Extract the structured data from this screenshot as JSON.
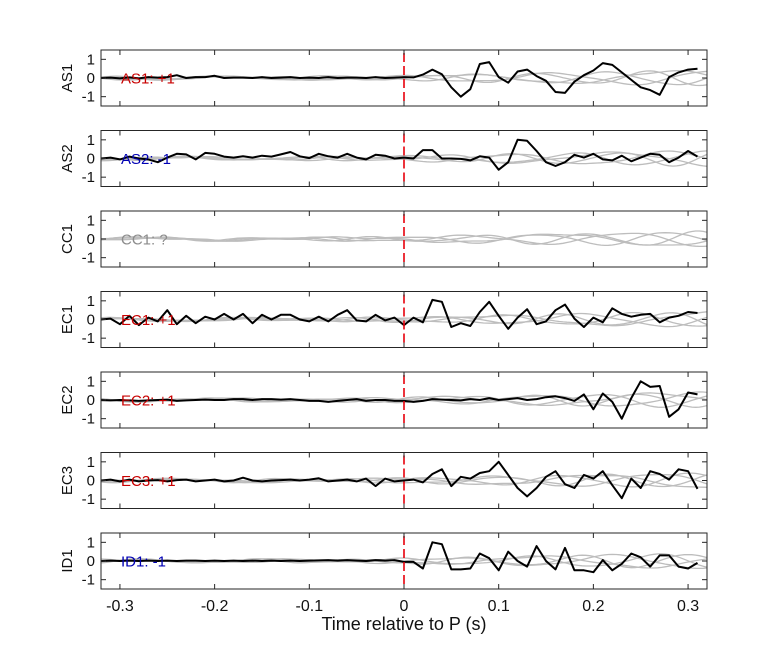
{
  "figure": {
    "xlabel": "Time relative to P (s)"
  },
  "chart_data": {
    "type": "line",
    "xlabel": "Time relative to P (s)",
    "xlim": [
      -0.32,
      0.32
    ],
    "ylim": [
      -1.5,
      1.5
    ],
    "xticks": [
      -0.3,
      -0.2,
      -0.1,
      0,
      0.1,
      0.2,
      0.3
    ],
    "xtick_labels": [
      "-0.3",
      "-0.2",
      "-0.1",
      "0",
      "0.1",
      "0.2",
      "0.3"
    ],
    "yticks": [
      1,
      0,
      -1
    ],
    "ytick_labels": [
      "1",
      "0",
      "-1"
    ],
    "grid": false,
    "marker_time": 0,
    "colors": {
      "main": "#000000",
      "background": "#bdbdbd",
      "marker": "#e8000b",
      "positive": "#c80000",
      "negative": "#0000b4",
      "unknown": "#8c8c8c"
    },
    "panels": [
      {
        "name": "AS1",
        "label": "AS1: +1",
        "label_color": "#c80000",
        "x": [
          -0.32,
          -0.31,
          -0.3,
          -0.29,
          -0.28,
          -0.27,
          -0.26,
          -0.25,
          -0.24,
          -0.23,
          -0.22,
          -0.21,
          -0.2,
          -0.19,
          -0.18,
          -0.17,
          -0.16,
          -0.15,
          -0.14,
          -0.13,
          -0.12,
          -0.11,
          -0.1,
          -0.09,
          -0.08,
          -0.07,
          -0.06,
          -0.05,
          -0.04,
          -0.03,
          -0.02,
          -0.01,
          0,
          0.01,
          0.02,
          0.03,
          0.04,
          0.05,
          0.06,
          0.07,
          0.08,
          0.09,
          0.1,
          0.11,
          0.12,
          0.13,
          0.14,
          0.15,
          0.16,
          0.17,
          0.18,
          0.19,
          0.2,
          0.21,
          0.22,
          0.23,
          0.24,
          0.25,
          0.26,
          0.27,
          0.28,
          0.29,
          0.3,
          0.31
        ],
        "y": [
          0,
          0.02,
          -0.02,
          0.03,
          -0.02,
          0.05,
          0.02,
          0.05,
          0.15,
          0,
          0.05,
          0.05,
          0.12,
          0,
          0.02,
          0.02,
          0,
          0.05,
          0,
          0.02,
          0.05,
          0,
          0.02,
          0,
          0.05,
          0,
          0.02,
          0.02,
          0,
          0.05,
          0,
          0.02,
          0.05,
          0.03,
          0.18,
          0.45,
          0.2,
          -0.5,
          -1,
          -0.6,
          0.75,
          0.85,
          0.05,
          -0.25,
          0.35,
          0.45,
          0.1,
          -0.15,
          -0.75,
          -0.8,
          -0.2,
          0.15,
          0.4,
          0.8,
          0.7,
          0.3,
          -0.1,
          -0.5,
          -0.65,
          -0.9,
          0.05,
          0.3,
          0.45,
          0.5
        ]
      },
      {
        "name": "AS2",
        "label": "AS2: -1",
        "label_color": "#0000b4",
        "x": [
          -0.32,
          -0.31,
          -0.3,
          -0.29,
          -0.28,
          -0.27,
          -0.26,
          -0.25,
          -0.24,
          -0.23,
          -0.22,
          -0.21,
          -0.2,
          -0.19,
          -0.18,
          -0.17,
          -0.16,
          -0.15,
          -0.14,
          -0.13,
          -0.12,
          -0.11,
          -0.1,
          -0.09,
          -0.08,
          -0.07,
          -0.06,
          -0.05,
          -0.04,
          -0.03,
          -0.02,
          -0.01,
          0,
          0.01,
          0.02,
          0.03,
          0.04,
          0.05,
          0.06,
          0.07,
          0.08,
          0.09,
          0.1,
          0.11,
          0.12,
          0.13,
          0.14,
          0.15,
          0.16,
          0.17,
          0.18,
          0.19,
          0.2,
          0.21,
          0.22,
          0.23,
          0.24,
          0.25,
          0.26,
          0.27,
          0.28,
          0.29,
          0.3,
          0.31
        ],
        "y": [
          0,
          0.05,
          -0.05,
          0.1,
          0,
          -0.05,
          -0.2,
          0.05,
          0.25,
          0.22,
          -0.05,
          0.3,
          0.25,
          0.1,
          0.05,
          0.12,
          0.05,
          0.15,
          0.1,
          0.22,
          0.35,
          0.12,
          0.02,
          0.25,
          0.12,
          0.05,
          0.25,
          0.05,
          -0.05,
          0.2,
          0.15,
          0,
          0.05,
          0,
          0.45,
          0.45,
          0,
          0,
          -0.02,
          -0.1,
          0.12,
          0.05,
          -0.6,
          -0.2,
          1,
          0.95,
          0.4,
          -0.2,
          -0.4,
          -0.2,
          0.2,
          0.05,
          0.25,
          -0.05,
          -0.1,
          0.15,
          -0.15,
          0.05,
          0.25,
          0.2,
          -0.2,
          0.05,
          0.4,
          0.1
        ]
      },
      {
        "name": "CC1",
        "label": "CC1: ?",
        "label_color": "#8c8c8c",
        "x": [],
        "y": []
      },
      {
        "name": "EC1",
        "label": "EC1: +1",
        "label_color": "#c80000",
        "x": [
          -0.32,
          -0.31,
          -0.3,
          -0.29,
          -0.28,
          -0.27,
          -0.26,
          -0.25,
          -0.24,
          -0.23,
          -0.22,
          -0.21,
          -0.2,
          -0.19,
          -0.18,
          -0.17,
          -0.16,
          -0.15,
          -0.14,
          -0.13,
          -0.12,
          -0.11,
          -0.1,
          -0.09,
          -0.08,
          -0.07,
          -0.06,
          -0.05,
          -0.04,
          -0.03,
          -0.02,
          -0.01,
          0,
          0.01,
          0.02,
          0.03,
          0.04,
          0.05,
          0.06,
          0.07,
          0.08,
          0.09,
          0.1,
          0.11,
          0.12,
          0.13,
          0.14,
          0.15,
          0.16,
          0.17,
          0.18,
          0.19,
          0.2,
          0.21,
          0.22,
          0.23,
          0.24,
          0.25,
          0.26,
          0.27,
          0.28,
          0.29,
          0.3,
          0.31
        ],
        "y": [
          0,
          0.05,
          -0.25,
          0.2,
          -0.3,
          0.1,
          -0.1,
          0.5,
          -0.25,
          0.2,
          -0.2,
          0.15,
          0,
          0.3,
          0,
          0.3,
          -0.2,
          0.25,
          0,
          0.25,
          0.25,
          0,
          -0.1,
          0.15,
          -0.1,
          0.25,
          0.5,
          -0.05,
          -0.1,
          0.25,
          -0.05,
          0.1,
          -0.3,
          0.1,
          -0.15,
          1.05,
          0.95,
          -0.4,
          -0.2,
          -0.35,
          0.4,
          0.95,
          0.2,
          -0.5,
          0.1,
          0.55,
          -0.25,
          -0.1,
          0.5,
          0.8,
          0.05,
          -0.4,
          0.1,
          -0.15,
          0.6,
          0.3,
          0.15,
          0.25,
          0.3,
          -0.15,
          0.1,
          0.2,
          0.4,
          0.35
        ]
      },
      {
        "name": "EC2",
        "label": "EC2: +1",
        "label_color": "#c80000",
        "x": [
          -0.32,
          -0.31,
          -0.3,
          -0.29,
          -0.28,
          -0.27,
          -0.26,
          -0.25,
          -0.24,
          -0.23,
          -0.22,
          -0.21,
          -0.2,
          -0.19,
          -0.18,
          -0.17,
          -0.16,
          -0.15,
          -0.14,
          -0.13,
          -0.12,
          -0.11,
          -0.1,
          -0.09,
          -0.08,
          -0.07,
          -0.06,
          -0.05,
          -0.04,
          -0.03,
          -0.02,
          -0.01,
          0,
          0.01,
          0.02,
          0.03,
          0.04,
          0.05,
          0.06,
          0.07,
          0.08,
          0.09,
          0.1,
          0.11,
          0.12,
          0.13,
          0.14,
          0.15,
          0.16,
          0.17,
          0.18,
          0.19,
          0.2,
          0.21,
          0.22,
          0.23,
          0.24,
          0.25,
          0.26,
          0.27,
          0.28,
          0.29,
          0.3,
          0.31
        ],
        "y": [
          0,
          -0.02,
          0,
          -0.02,
          -0.05,
          -0.02,
          0,
          0.02,
          -0.05,
          -0.02,
          0,
          0.02,
          0,
          0,
          0.05,
          0.05,
          0,
          0.05,
          0.05,
          0.02,
          0.05,
          0,
          -0.05,
          -0.05,
          -0.1,
          -0.05,
          0,
          0.05,
          -0.05,
          0,
          0,
          -0.05,
          -0.05,
          -0.1,
          -0.05,
          0.05,
          0.02,
          0,
          -0.02,
          0.05,
          0,
          0.1,
          0,
          0.05,
          0.1,
          0,
          0.05,
          0.15,
          0.2,
          0.1,
          -0.05,
          0.3,
          -0.5,
          0.35,
          -0.1,
          -1,
          0.1,
          1,
          0.7,
          0.75,
          -0.9,
          -0.5,
          0.4,
          0.3
        ]
      },
      {
        "name": "EC3",
        "label": "EC3: +1",
        "label_color": "#c80000",
        "x": [
          -0.32,
          -0.31,
          -0.3,
          -0.29,
          -0.28,
          -0.27,
          -0.26,
          -0.25,
          -0.24,
          -0.23,
          -0.22,
          -0.21,
          -0.2,
          -0.19,
          -0.18,
          -0.17,
          -0.16,
          -0.15,
          -0.14,
          -0.13,
          -0.12,
          -0.11,
          -0.1,
          -0.09,
          -0.08,
          -0.07,
          -0.06,
          -0.05,
          -0.04,
          -0.03,
          -0.02,
          -0.01,
          0,
          0.01,
          0.02,
          0.03,
          0.04,
          0.05,
          0.06,
          0.07,
          0.08,
          0.09,
          0.1,
          0.11,
          0.12,
          0.13,
          0.14,
          0.15,
          0.16,
          0.17,
          0.18,
          0.19,
          0.2,
          0.21,
          0.22,
          0.23,
          0.24,
          0.25,
          0.26,
          0.27,
          0.28,
          0.29,
          0.3,
          0.31
        ],
        "y": [
          0,
          0.05,
          -0.05,
          0.05,
          -0.05,
          0,
          0.02,
          -0.05,
          0.02,
          0.05,
          -0.05,
          0,
          0.05,
          -0.05,
          0,
          0.15,
          0,
          -0.05,
          0,
          0.02,
          0.05,
          0,
          0.05,
          0.12,
          -0.05,
          0,
          0.05,
          -0.05,
          0.1,
          -0.3,
          0.1,
          -0.05,
          0,
          0.05,
          -0.1,
          0.35,
          0.6,
          -0.3,
          0.2,
          0.1,
          0.4,
          0.5,
          1,
          0.3,
          -0.4,
          -0.85,
          -0.4,
          0.2,
          0.5,
          -0.2,
          -0.4,
          0.3,
          0.1,
          0.5,
          -0.25,
          -0.95,
          0.1,
          -0.4,
          0.5,
          0.35,
          0.05,
          0.6,
          0.5,
          -0.45
        ]
      },
      {
        "name": "ID1",
        "label": "ID1: -1",
        "label_color": "#0000b4",
        "x": [
          -0.32,
          -0.31,
          -0.3,
          -0.29,
          -0.28,
          -0.27,
          -0.26,
          -0.25,
          -0.24,
          -0.23,
          -0.22,
          -0.21,
          -0.2,
          -0.19,
          -0.18,
          -0.17,
          -0.16,
          -0.15,
          -0.14,
          -0.13,
          -0.12,
          -0.11,
          -0.1,
          -0.09,
          -0.08,
          -0.07,
          -0.06,
          -0.05,
          -0.04,
          -0.03,
          -0.02,
          -0.01,
          0,
          0.01,
          0.02,
          0.03,
          0.04,
          0.05,
          0.06,
          0.07,
          0.08,
          0.09,
          0.1,
          0.11,
          0.12,
          0.13,
          0.14,
          0.15,
          0.16,
          0.17,
          0.18,
          0.19,
          0.2,
          0.21,
          0.22,
          0.23,
          0.24,
          0.25,
          0.26,
          0.27,
          0.28,
          0.29,
          0.3,
          0.31
        ],
        "y": [
          0,
          0.02,
          0,
          0.02,
          0,
          0.02,
          0,
          0.02,
          0,
          0.02,
          0.02,
          0,
          0.02,
          0,
          0.02,
          0,
          0.02,
          0,
          0.02,
          0,
          0.02,
          0,
          0.02,
          0.03,
          0.05,
          0.02,
          0.05,
          0.02,
          0,
          0.05,
          0.02,
          0.05,
          -0.05,
          -0.05,
          -0.4,
          1,
          0.9,
          -0.45,
          -0.45,
          -0.4,
          0.4,
          0.15,
          -0.5,
          0.5,
          0,
          -0.3,
          0.8,
          0,
          -0.45,
          0.7,
          -0.5,
          -0.5,
          -0.6,
          0.05,
          -0.5,
          -0.15,
          0.4,
          0.2,
          -0.3,
          0.3,
          0.3,
          -0.3,
          -0.4,
          -0.1
        ]
      }
    ]
  }
}
